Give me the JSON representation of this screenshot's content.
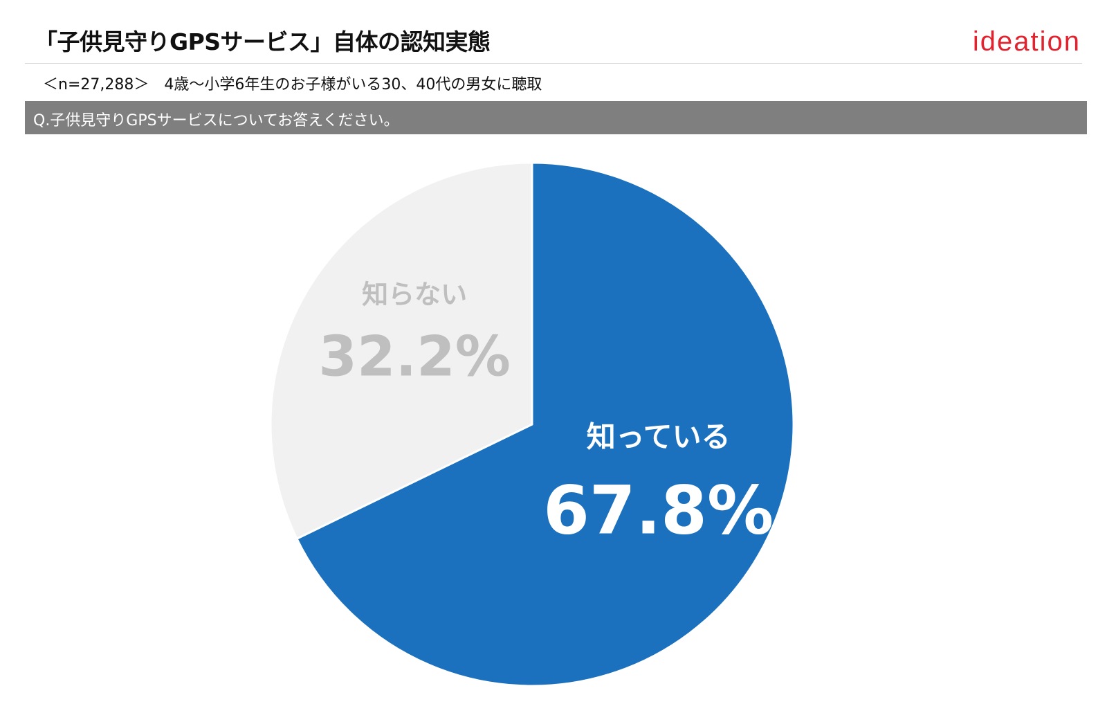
{
  "header": {
    "title": "「子供見守りGPSサービス」自体の認知実態",
    "logo_text": "ideation",
    "sample_text": "＜n=27,288＞　4歳～小学6年生のお子様がいる30、40代の男女に聴取"
  },
  "question": {
    "text": "Q.子供見守りGPSサービスについてお答えください。"
  },
  "colors": {
    "known": "#1c71be",
    "unknown": "#f1f1f1",
    "unknown_text": "#bfbfbf",
    "known_text": "#ffffff",
    "logo": "#e0242f",
    "question_bar": "#7f7f7f"
  },
  "chart_data": {
    "type": "pie",
    "start": "12 o'clock",
    "direction": "clockwise",
    "slices": [
      {
        "label": "知っている",
        "value": 67.8,
        "value_label": "67.8%"
      },
      {
        "label": "知らない",
        "value": 32.2,
        "value_label": "32.2%"
      }
    ]
  }
}
